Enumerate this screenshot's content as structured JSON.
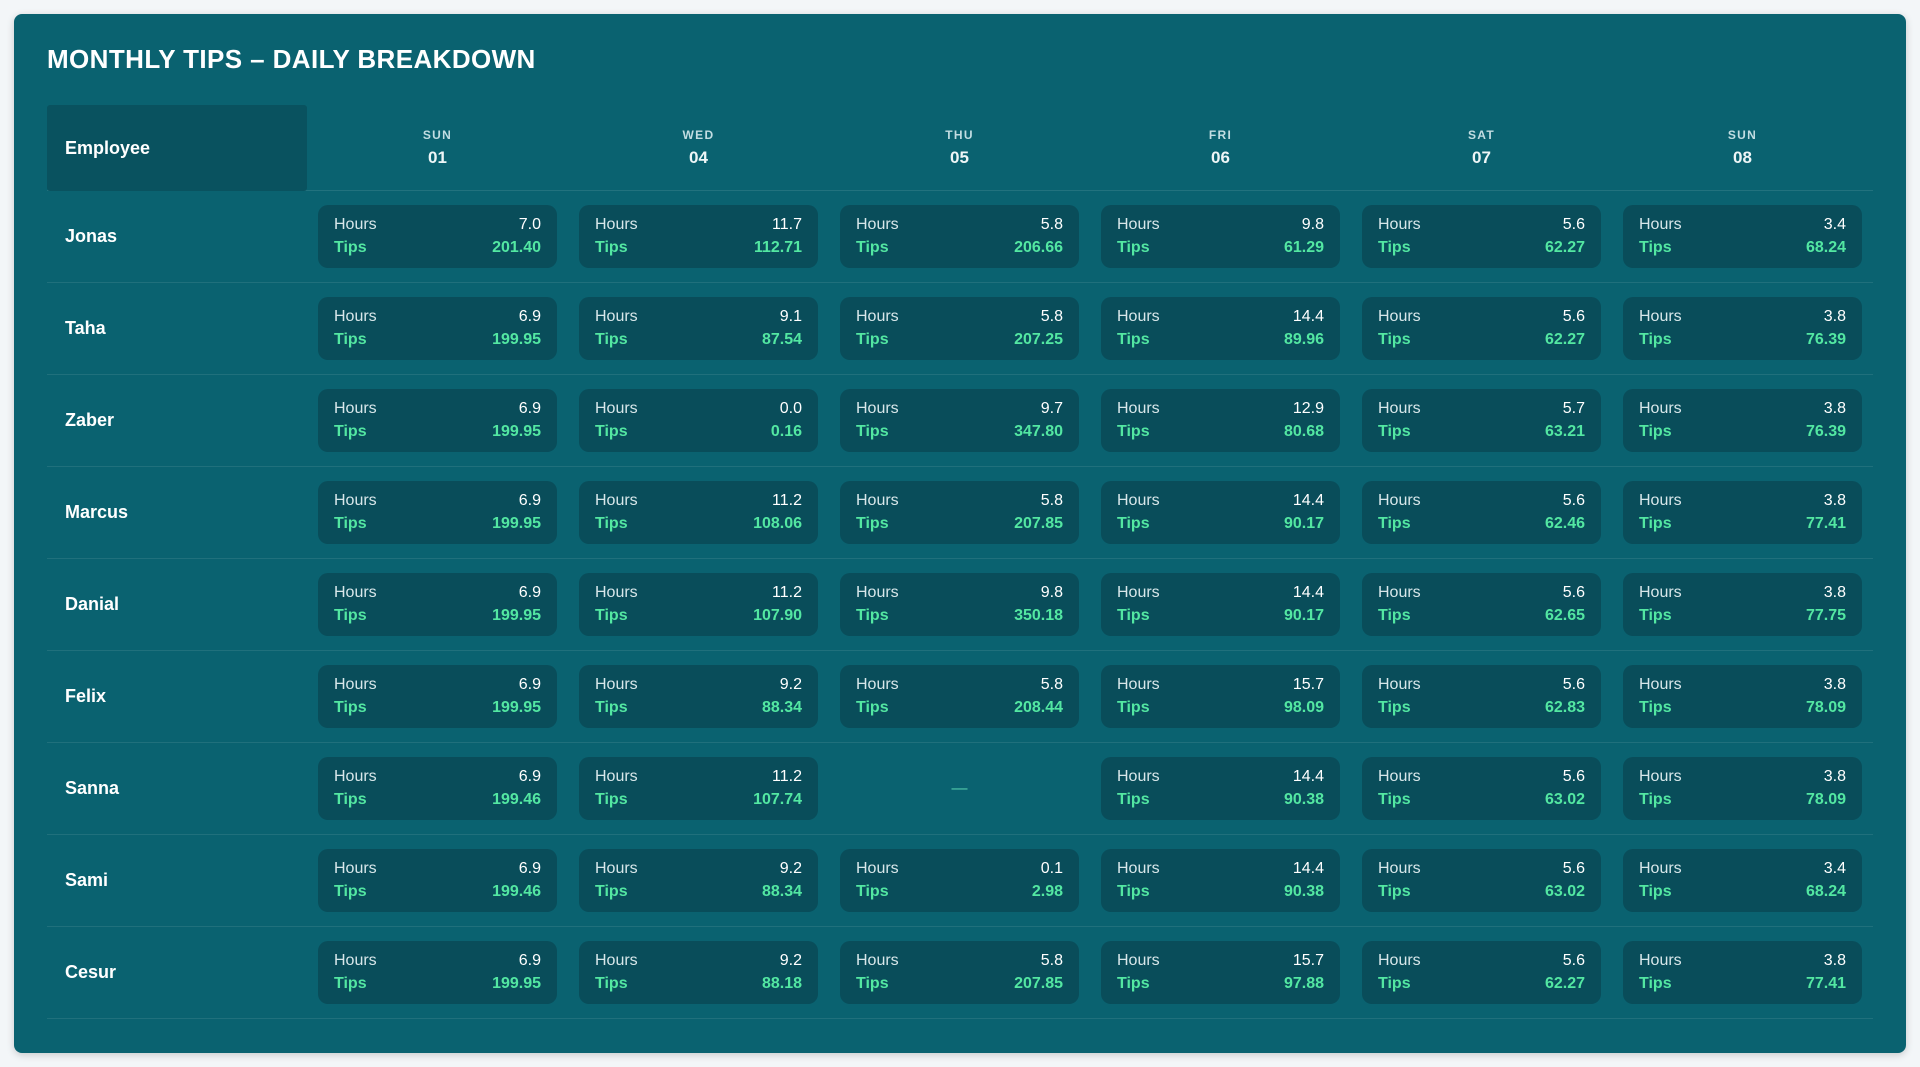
{
  "title": "MONTHLY TIPS – DAILY BREAKDOWN",
  "colors": {
    "page_bg": "#f3f6f8",
    "card_bg": "#0a6270",
    "cell_bg": "#094d5a",
    "employee_header_bg": "#09525f",
    "tips_green": "#53e7a2",
    "text_primary": "#ffffff",
    "text_muted": "#c2dde2"
  },
  "table": {
    "employee_header": "Employee",
    "hours_label": "Hours",
    "tips_label": "Tips",
    "empty_placeholder": "—",
    "columns": [
      {
        "day": "SUN",
        "date": "01"
      },
      {
        "day": "WED",
        "date": "04"
      },
      {
        "day": "THU",
        "date": "05"
      },
      {
        "day": "FRI",
        "date": "06"
      },
      {
        "day": "SAT",
        "date": "07"
      },
      {
        "day": "SUN",
        "date": "08"
      }
    ],
    "rows": [
      {
        "employee": "Jonas",
        "cells": [
          {
            "hours": "7.0",
            "tips": "201.40"
          },
          {
            "hours": "11.7",
            "tips": "112.71"
          },
          {
            "hours": "5.8",
            "tips": "206.66"
          },
          {
            "hours": "9.8",
            "tips": "61.29"
          },
          {
            "hours": "5.6",
            "tips": "62.27"
          },
          {
            "hours": "3.4",
            "tips": "68.24"
          }
        ]
      },
      {
        "employee": "Taha",
        "cells": [
          {
            "hours": "6.9",
            "tips": "199.95"
          },
          {
            "hours": "9.1",
            "tips": "87.54"
          },
          {
            "hours": "5.8",
            "tips": "207.25"
          },
          {
            "hours": "14.4",
            "tips": "89.96"
          },
          {
            "hours": "5.6",
            "tips": "62.27"
          },
          {
            "hours": "3.8",
            "tips": "76.39"
          }
        ]
      },
      {
        "employee": "Zaber",
        "cells": [
          {
            "hours": "6.9",
            "tips": "199.95"
          },
          {
            "hours": "0.0",
            "tips": "0.16"
          },
          {
            "hours": "9.7",
            "tips": "347.80"
          },
          {
            "hours": "12.9",
            "tips": "80.68"
          },
          {
            "hours": "5.7",
            "tips": "63.21"
          },
          {
            "hours": "3.8",
            "tips": "76.39"
          }
        ]
      },
      {
        "employee": "Marcus",
        "cells": [
          {
            "hours": "6.9",
            "tips": "199.95"
          },
          {
            "hours": "11.2",
            "tips": "108.06"
          },
          {
            "hours": "5.8",
            "tips": "207.85"
          },
          {
            "hours": "14.4",
            "tips": "90.17"
          },
          {
            "hours": "5.6",
            "tips": "62.46"
          },
          {
            "hours": "3.8",
            "tips": "77.41"
          }
        ]
      },
      {
        "employee": "Danial",
        "cells": [
          {
            "hours": "6.9",
            "tips": "199.95"
          },
          {
            "hours": "11.2",
            "tips": "107.90"
          },
          {
            "hours": "9.8",
            "tips": "350.18"
          },
          {
            "hours": "14.4",
            "tips": "90.17"
          },
          {
            "hours": "5.6",
            "tips": "62.65"
          },
          {
            "hours": "3.8",
            "tips": "77.75"
          }
        ]
      },
      {
        "employee": "Felix",
        "cells": [
          {
            "hours": "6.9",
            "tips": "199.95"
          },
          {
            "hours": "9.2",
            "tips": "88.34"
          },
          {
            "hours": "5.8",
            "tips": "208.44"
          },
          {
            "hours": "15.7",
            "tips": "98.09"
          },
          {
            "hours": "5.6",
            "tips": "62.83"
          },
          {
            "hours": "3.8",
            "tips": "78.09"
          }
        ]
      },
      {
        "employee": "Sanna",
        "cells": [
          {
            "hours": "6.9",
            "tips": "199.46"
          },
          {
            "hours": "11.2",
            "tips": "107.74"
          },
          null,
          {
            "hours": "14.4",
            "tips": "90.38"
          },
          {
            "hours": "5.6",
            "tips": "63.02"
          },
          {
            "hours": "3.8",
            "tips": "78.09"
          }
        ]
      },
      {
        "employee": "Sami",
        "cells": [
          {
            "hours": "6.9",
            "tips": "199.46"
          },
          {
            "hours": "9.2",
            "tips": "88.34"
          },
          {
            "hours": "0.1",
            "tips": "2.98"
          },
          {
            "hours": "14.4",
            "tips": "90.38"
          },
          {
            "hours": "5.6",
            "tips": "63.02"
          },
          {
            "hours": "3.4",
            "tips": "68.24"
          }
        ]
      },
      {
        "employee": "Cesur",
        "cells": [
          {
            "hours": "6.9",
            "tips": "199.95"
          },
          {
            "hours": "9.2",
            "tips": "88.18"
          },
          {
            "hours": "5.8",
            "tips": "207.85"
          },
          {
            "hours": "15.7",
            "tips": "97.88"
          },
          {
            "hours": "5.6",
            "tips": "62.27"
          },
          {
            "hours": "3.8",
            "tips": "77.41"
          }
        ]
      }
    ]
  }
}
